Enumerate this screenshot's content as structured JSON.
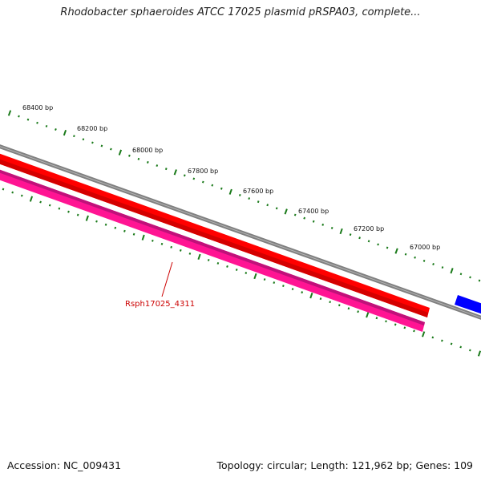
{
  "title": "Rhodobacter sphaeroides ATCC 17025 plasmid pRSPA03, complete...",
  "footer": {
    "accession": "Accession: NC_009431",
    "summary": "Topology: circular; Length: 121,962 bp; Genes: 109"
  },
  "scale": {
    "unit": "bp",
    "labels": [
      "68400 bp",
      "68200 bp",
      "68000 bp",
      "67800 bp",
      "67600 bp",
      "67400 bp",
      "67200 bp",
      "67000 bp"
    ]
  },
  "features": {
    "gene_label": "Rsph17025_4311"
  },
  "colors": {
    "backbone": "#808080",
    "gene_red": "#ff0000",
    "gene_magenta": "#ff1493",
    "gene_blue": "#0000ff",
    "ticks": "#1a7a1a",
    "label_red": "#cc0000"
  }
}
